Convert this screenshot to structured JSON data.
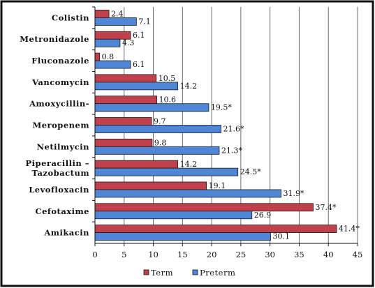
{
  "colors": {
    "term": "#c0404b",
    "preterm": "#4f86d6",
    "bar_stroke": "#1a1a1a",
    "grid": "#6a6a6a",
    "frame": "#111111"
  },
  "chart_data": {
    "type": "bar",
    "orientation": "horizontal",
    "categories": [
      "Colistin",
      "Metronidazole",
      "Fluconazole",
      "Vancomycin",
      "Amoxycillin-",
      "Meropenem",
      "Netilmycin",
      "Piperacillin –\nTazobactum",
      "Levofloxacin",
      "Cefotaxime",
      "Amikacin"
    ],
    "series": [
      {
        "name": "Term",
        "values": [
          2.4,
          6.1,
          0.8,
          10.5,
          10.6,
          9.7,
          9.8,
          14.2,
          19.1,
          37.4,
          41.4
        ],
        "labels": [
          "2.4",
          "6.1",
          "0.8",
          "10.5",
          "10.6",
          "9.7",
          "9.8",
          "14.2",
          "19.1",
          "37.4*",
          "41.4*"
        ]
      },
      {
        "name": "Preterm",
        "values": [
          7.1,
          4.3,
          6.1,
          14.2,
          19.5,
          21.6,
          21.3,
          24.5,
          31.9,
          26.9,
          30.1
        ],
        "labels": [
          "7.1",
          "4.3",
          "6.1",
          "14.2",
          "19.5*",
          "21.6*",
          "21.3*",
          "24.5*",
          "31.9*",
          "26.9",
          "30.1"
        ]
      }
    ],
    "x_ticks": [
      "0",
      "5",
      "10",
      "15",
      "20",
      "25",
      "30",
      "35",
      "40",
      "45"
    ],
    "xlim": [
      0,
      45
    ],
    "grid": "vertical",
    "legend": "bottom-center",
    "title": "",
    "xlabel": "",
    "ylabel": ""
  }
}
